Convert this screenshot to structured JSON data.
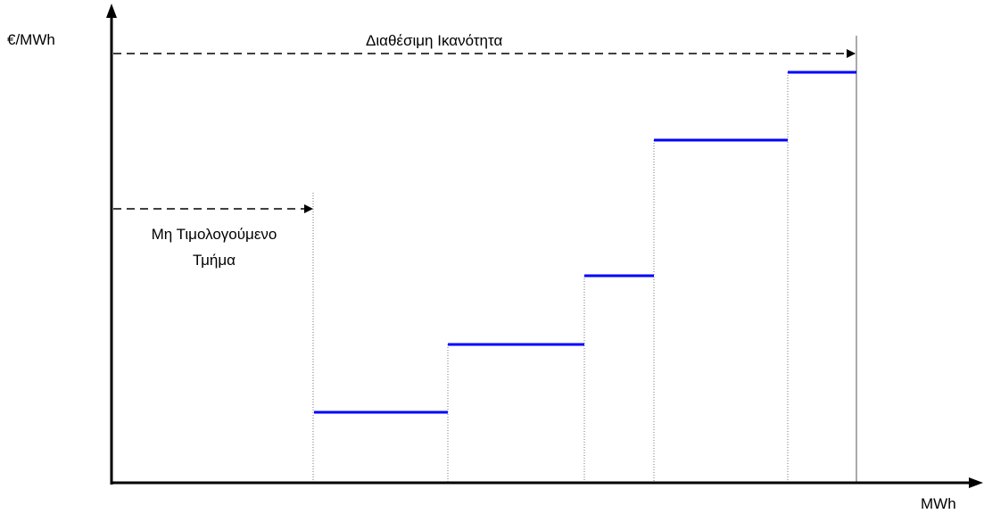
{
  "axes": {
    "y_label": "€/MWh",
    "x_label": "MWh"
  },
  "annotations": {
    "available_capacity": "Διαθέσιμη Ικανότητα",
    "non_priced_line1": "Μη Τιμολογούμενο",
    "non_priced_line2": "Τμήμα"
  },
  "colors": {
    "step": "#0000ff",
    "axis": "#000000",
    "guide": "#666666"
  }
}
